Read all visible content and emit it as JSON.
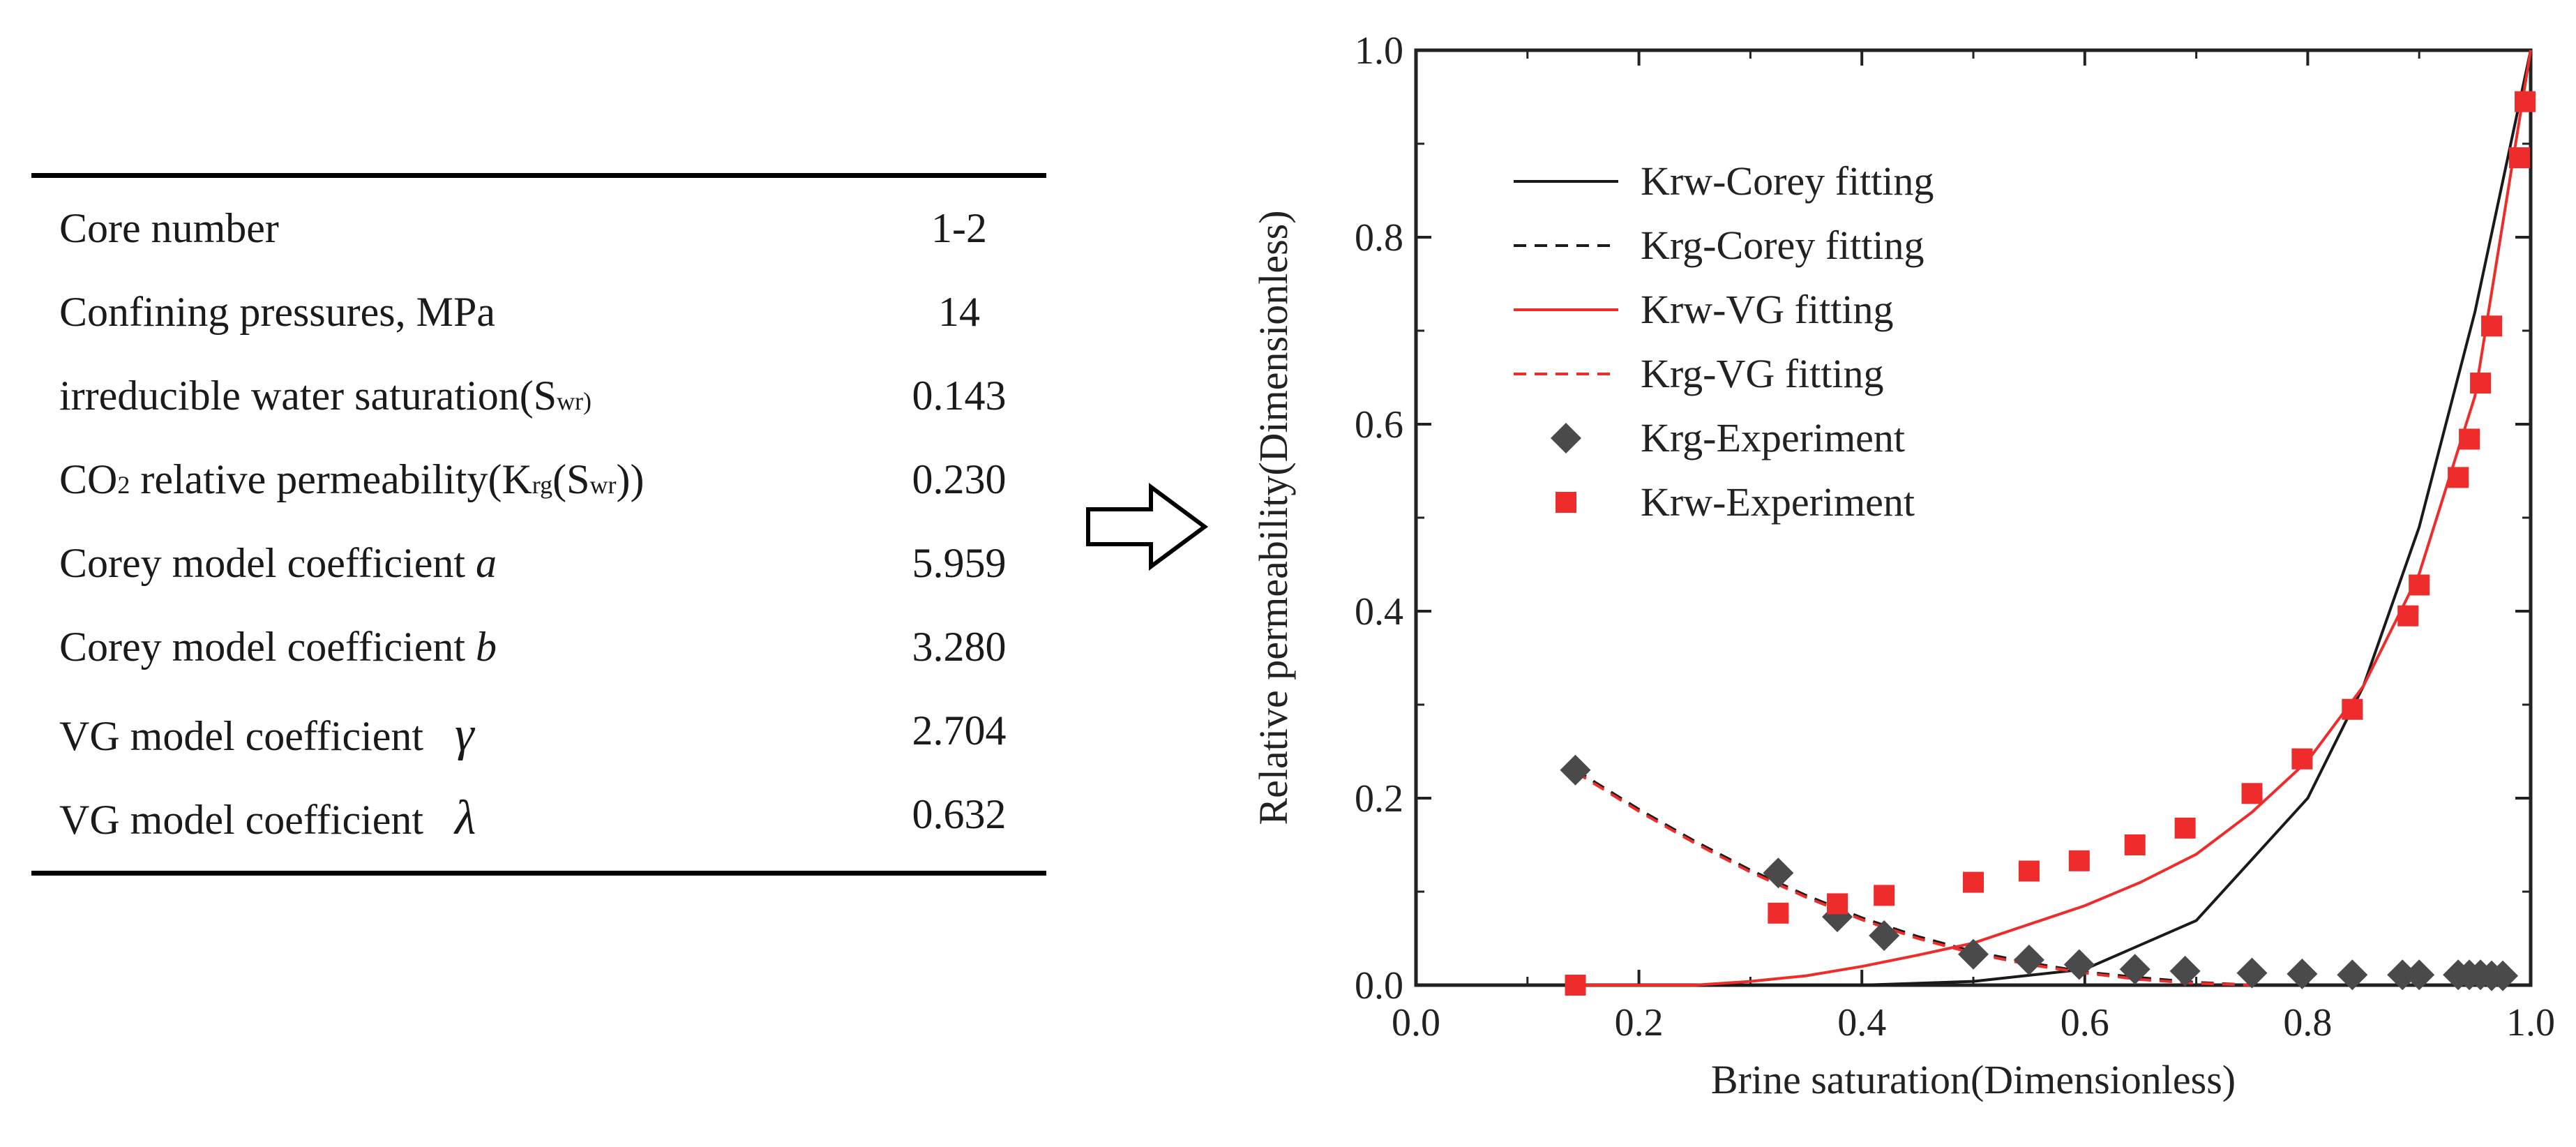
{
  "table": {
    "rows": [
      {
        "label": "Core number",
        "value": "1-2"
      },
      {
        "label": "Confining pressures, MPa",
        "value": "14"
      },
      {
        "label": "irreducible water saturation(",
        "sub": "wr)",
        "value": "0.143"
      },
      {
        "label_pre": "CO",
        "label_sub": "2",
        "label_mid": " relative permeability(K",
        "label_sub2": "rg",
        "label_mid2": "(S",
        "label_sub3": "wr",
        "label_post": "))",
        "value": "0.230"
      },
      {
        "label": "Corey model coefficient ",
        "symbol": "a",
        "value": "5.959"
      },
      {
        "label": "Corey model coefficient ",
        "symbol": "b",
        "value": "3.280"
      },
      {
        "label": "VG model coefficient ",
        "symbol": "γ",
        "value": "2.704"
      },
      {
        "label": "VG model coefficient ",
        "symbol": "λ",
        "value": "0.632"
      }
    ]
  },
  "colors": {
    "red": "#ee2c2c",
    "dark": "#4a4a4a",
    "black": "#1a1a1a"
  },
  "chart_data": {
    "type": "scatter",
    "xlabel": "Brine saturation(Dimensionless)",
    "ylabel": "Relative permeability(Dimensionless)",
    "xlim": [
      0.0,
      1.0
    ],
    "ylim": [
      0.0,
      1.0
    ],
    "xticks": [
      "0.0",
      "0.2",
      "0.4",
      "0.6",
      "0.8",
      "1.0"
    ],
    "yticks": [
      "0.0",
      "0.2",
      "0.4",
      "0.6",
      "0.8",
      "1.0"
    ],
    "legend": [
      {
        "label": "Krw-Corey fitting",
        "style": "solid",
        "color": "#1a1a1a"
      },
      {
        "label": "Krg-Corey fitting",
        "style": "dashed",
        "color": "#1a1a1a"
      },
      {
        "label": "Krw-VG fitting",
        "style": "solid",
        "color": "#ee2c2c"
      },
      {
        "label": "Krg-VG fitting",
        "style": "dashed",
        "color": "#ee2c2c"
      },
      {
        "label": "Krg-Experiment",
        "style": "diamond",
        "color": "#4a4a4a"
      },
      {
        "label": "Krw-Experiment",
        "style": "square",
        "color": "#ee2c2c"
      }
    ],
    "krg_experiment": {
      "x": [
        0.143,
        0.325,
        0.378,
        0.42,
        0.5,
        0.55,
        0.595,
        0.645,
        0.69,
        0.75,
        0.795,
        0.84,
        0.885,
        0.9,
        0.935,
        0.945,
        0.955,
        0.965,
        0.975
      ],
      "y": [
        0.23,
        0.12,
        0.073,
        0.053,
        0.033,
        0.027,
        0.022,
        0.017,
        0.015,
        0.013,
        0.012,
        0.011,
        0.011,
        0.011,
        0.011,
        0.011,
        0.011,
        0.01,
        0.01
      ]
    },
    "krw_experiment": {
      "x": [
        0.143,
        0.325,
        0.378,
        0.42,
        0.5,
        0.55,
        0.595,
        0.645,
        0.69,
        0.75,
        0.795,
        0.84,
        0.89,
        0.9,
        0.935,
        0.945,
        0.955,
        0.965,
        0.99,
        0.995
      ],
      "y": [
        0.0,
        0.077,
        0.087,
        0.096,
        0.11,
        0.122,
        0.133,
        0.15,
        0.168,
        0.205,
        0.242,
        0.295,
        0.395,
        0.428,
        0.543,
        0.584,
        0.644,
        0.705,
        0.885,
        0.945
      ]
    },
    "krw_corey_fitting": {
      "x": [
        0.143,
        0.3,
        0.4,
        0.5,
        0.6,
        0.7,
        0.8,
        0.85,
        0.9,
        0.95,
        1.0
      ],
      "y": [
        0.0,
        0.0,
        0.0,
        0.004,
        0.017,
        0.069,
        0.2,
        0.32,
        0.49,
        0.72,
        1.0
      ]
    },
    "krg_corey_fitting": {
      "x": [
        0.143,
        0.2,
        0.25,
        0.3,
        0.35,
        0.4,
        0.45,
        0.5,
        0.55,
        0.6,
        0.65,
        0.7,
        0.75
      ],
      "y": [
        0.23,
        0.188,
        0.154,
        0.123,
        0.096,
        0.072,
        0.052,
        0.036,
        0.024,
        0.014,
        0.008,
        0.003,
        0.0
      ]
    },
    "krw_vg_fitting": {
      "x": [
        0.143,
        0.25,
        0.3,
        0.35,
        0.4,
        0.45,
        0.5,
        0.55,
        0.6,
        0.65,
        0.7,
        0.75,
        0.8,
        0.85,
        0.9,
        0.95,
        1.0
      ],
      "y": [
        0.0,
        0.0,
        0.004,
        0.01,
        0.02,
        0.032,
        0.045,
        0.065,
        0.085,
        0.11,
        0.14,
        0.185,
        0.24,
        0.32,
        0.44,
        0.63,
        1.0
      ]
    },
    "krg_vg_fitting": {
      "x": [
        0.143,
        0.2,
        0.25,
        0.3,
        0.35,
        0.4,
        0.45,
        0.5,
        0.55,
        0.6,
        0.65,
        0.7,
        0.75
      ],
      "y": [
        0.228,
        0.186,
        0.152,
        0.121,
        0.094,
        0.07,
        0.05,
        0.034,
        0.022,
        0.013,
        0.006,
        0.002,
        0.0
      ]
    }
  }
}
